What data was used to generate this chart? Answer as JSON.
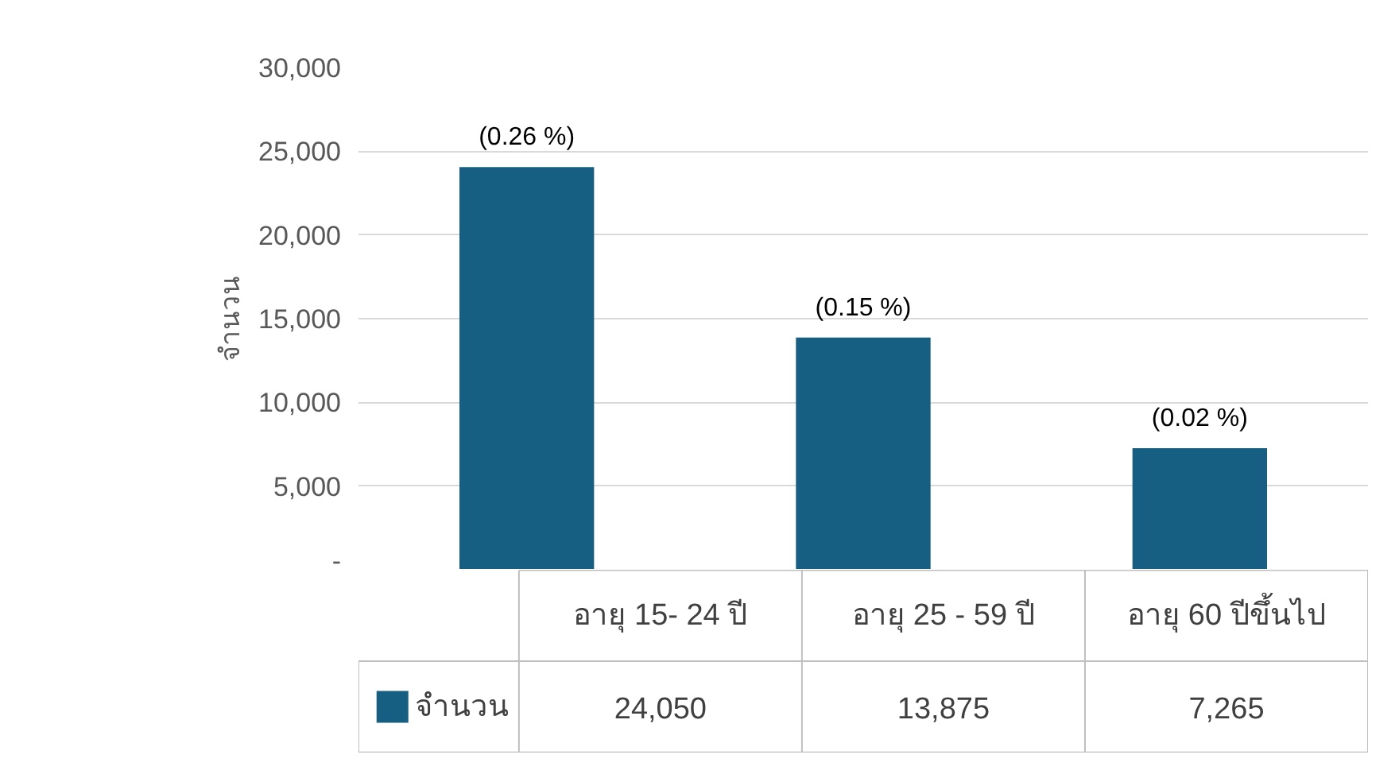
{
  "chart_data": {
    "type": "bar",
    "ylabel": "จำนวน",
    "categories": [
      "อายุ 15- 24 ปี",
      "อายุ 25 - 59 ปี",
      "อายุ 60 ปีขึ้นไป"
    ],
    "series": [
      {
        "name": "จำนวน",
        "color": "#175f82",
        "values": [
          24050,
          13875,
          7265
        ],
        "value_labels": [
          "24,050",
          "13,875",
          "7,265"
        ]
      }
    ],
    "ylim": [
      0,
      30000
    ],
    "yticks": [
      {
        "value": 0,
        "label": "-"
      },
      {
        "value": 5000,
        "label": "5,000"
      },
      {
        "value": 10000,
        "label": "10,000"
      },
      {
        "value": 15000,
        "label": "15,000"
      },
      {
        "value": 20000,
        "label": "20,000"
      },
      {
        "value": 25000,
        "label": "25,000"
      },
      {
        "value": 30000,
        "label": "30,000"
      }
    ],
    "grid": "y",
    "legend": "bottom left",
    "annotations": [
      "(0.26 %)",
      "(0.15 %)",
      "(0.02 %)"
    ]
  }
}
